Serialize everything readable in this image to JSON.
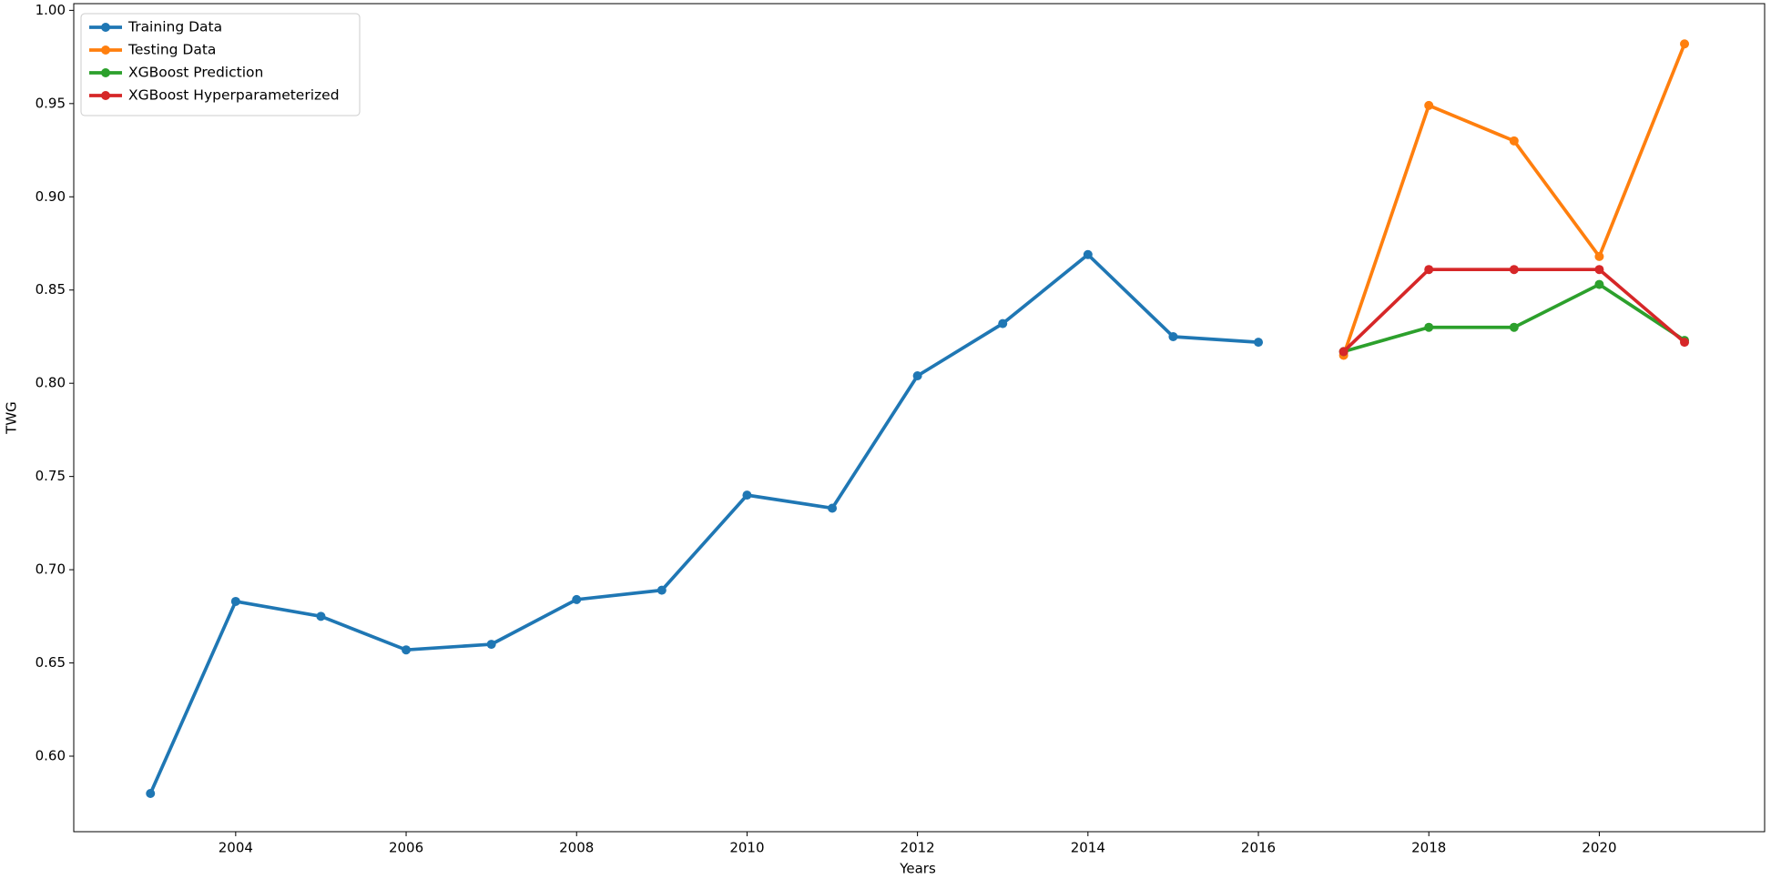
{
  "chart_data": {
    "type": "line",
    "x_label": "Years",
    "y_label": "TWG",
    "x": [
      2003,
      2004,
      2005,
      2006,
      2007,
      2008,
      2009,
      2010,
      2011,
      2012,
      2013,
      2014,
      2015,
      2016,
      2017,
      2018,
      2019,
      2020,
      2021
    ],
    "series": [
      {
        "name": "Training Data",
        "color": "#1f77b4",
        "values": [
          0.58,
          0.683,
          0.675,
          0.657,
          0.66,
          0.684,
          0.689,
          0.74,
          0.733,
          0.804,
          0.832,
          0.869,
          0.825,
          0.822,
          null,
          null,
          null,
          null,
          null
        ]
      },
      {
        "name": "Testing Data",
        "color": "#ff7f0e",
        "values": [
          null,
          null,
          null,
          null,
          null,
          null,
          null,
          null,
          null,
          null,
          null,
          null,
          null,
          null,
          0.815,
          0.949,
          0.93,
          0.868,
          0.982
        ]
      },
      {
        "name": "XGBoost Prediction",
        "color": "#2ca02c",
        "values": [
          null,
          null,
          null,
          null,
          null,
          null,
          null,
          null,
          null,
          null,
          null,
          null,
          null,
          null,
          0.817,
          0.83,
          0.83,
          0.853,
          0.823
        ]
      },
      {
        "name": "XGBoost Hyperparameterized",
        "color": "#d62728",
        "values": [
          null,
          null,
          null,
          null,
          null,
          null,
          null,
          null,
          null,
          null,
          null,
          null,
          null,
          null,
          0.817,
          0.861,
          0.861,
          0.861,
          0.822
        ]
      }
    ],
    "xlim": [
      2002.1,
      2021.94
    ],
    "ylim": [
      0.5595,
      1.0036
    ],
    "xticks": [
      2004,
      2006,
      2008,
      2010,
      2012,
      2014,
      2016,
      2018,
      2020
    ],
    "yticks": [
      {
        "value": 0.6,
        "label": "0.60"
      },
      0.65,
      {
        "value": 0.7,
        "label": "0.70"
      },
      0.75,
      {
        "value": 0.8,
        "label": "0.80"
      },
      0.85,
      {
        "value": 0.9,
        "label": "0.90"
      },
      0.95,
      {
        "value": 1.0,
        "label": "1.00"
      }
    ],
    "grid": false,
    "legend_position": "upper-left"
  }
}
